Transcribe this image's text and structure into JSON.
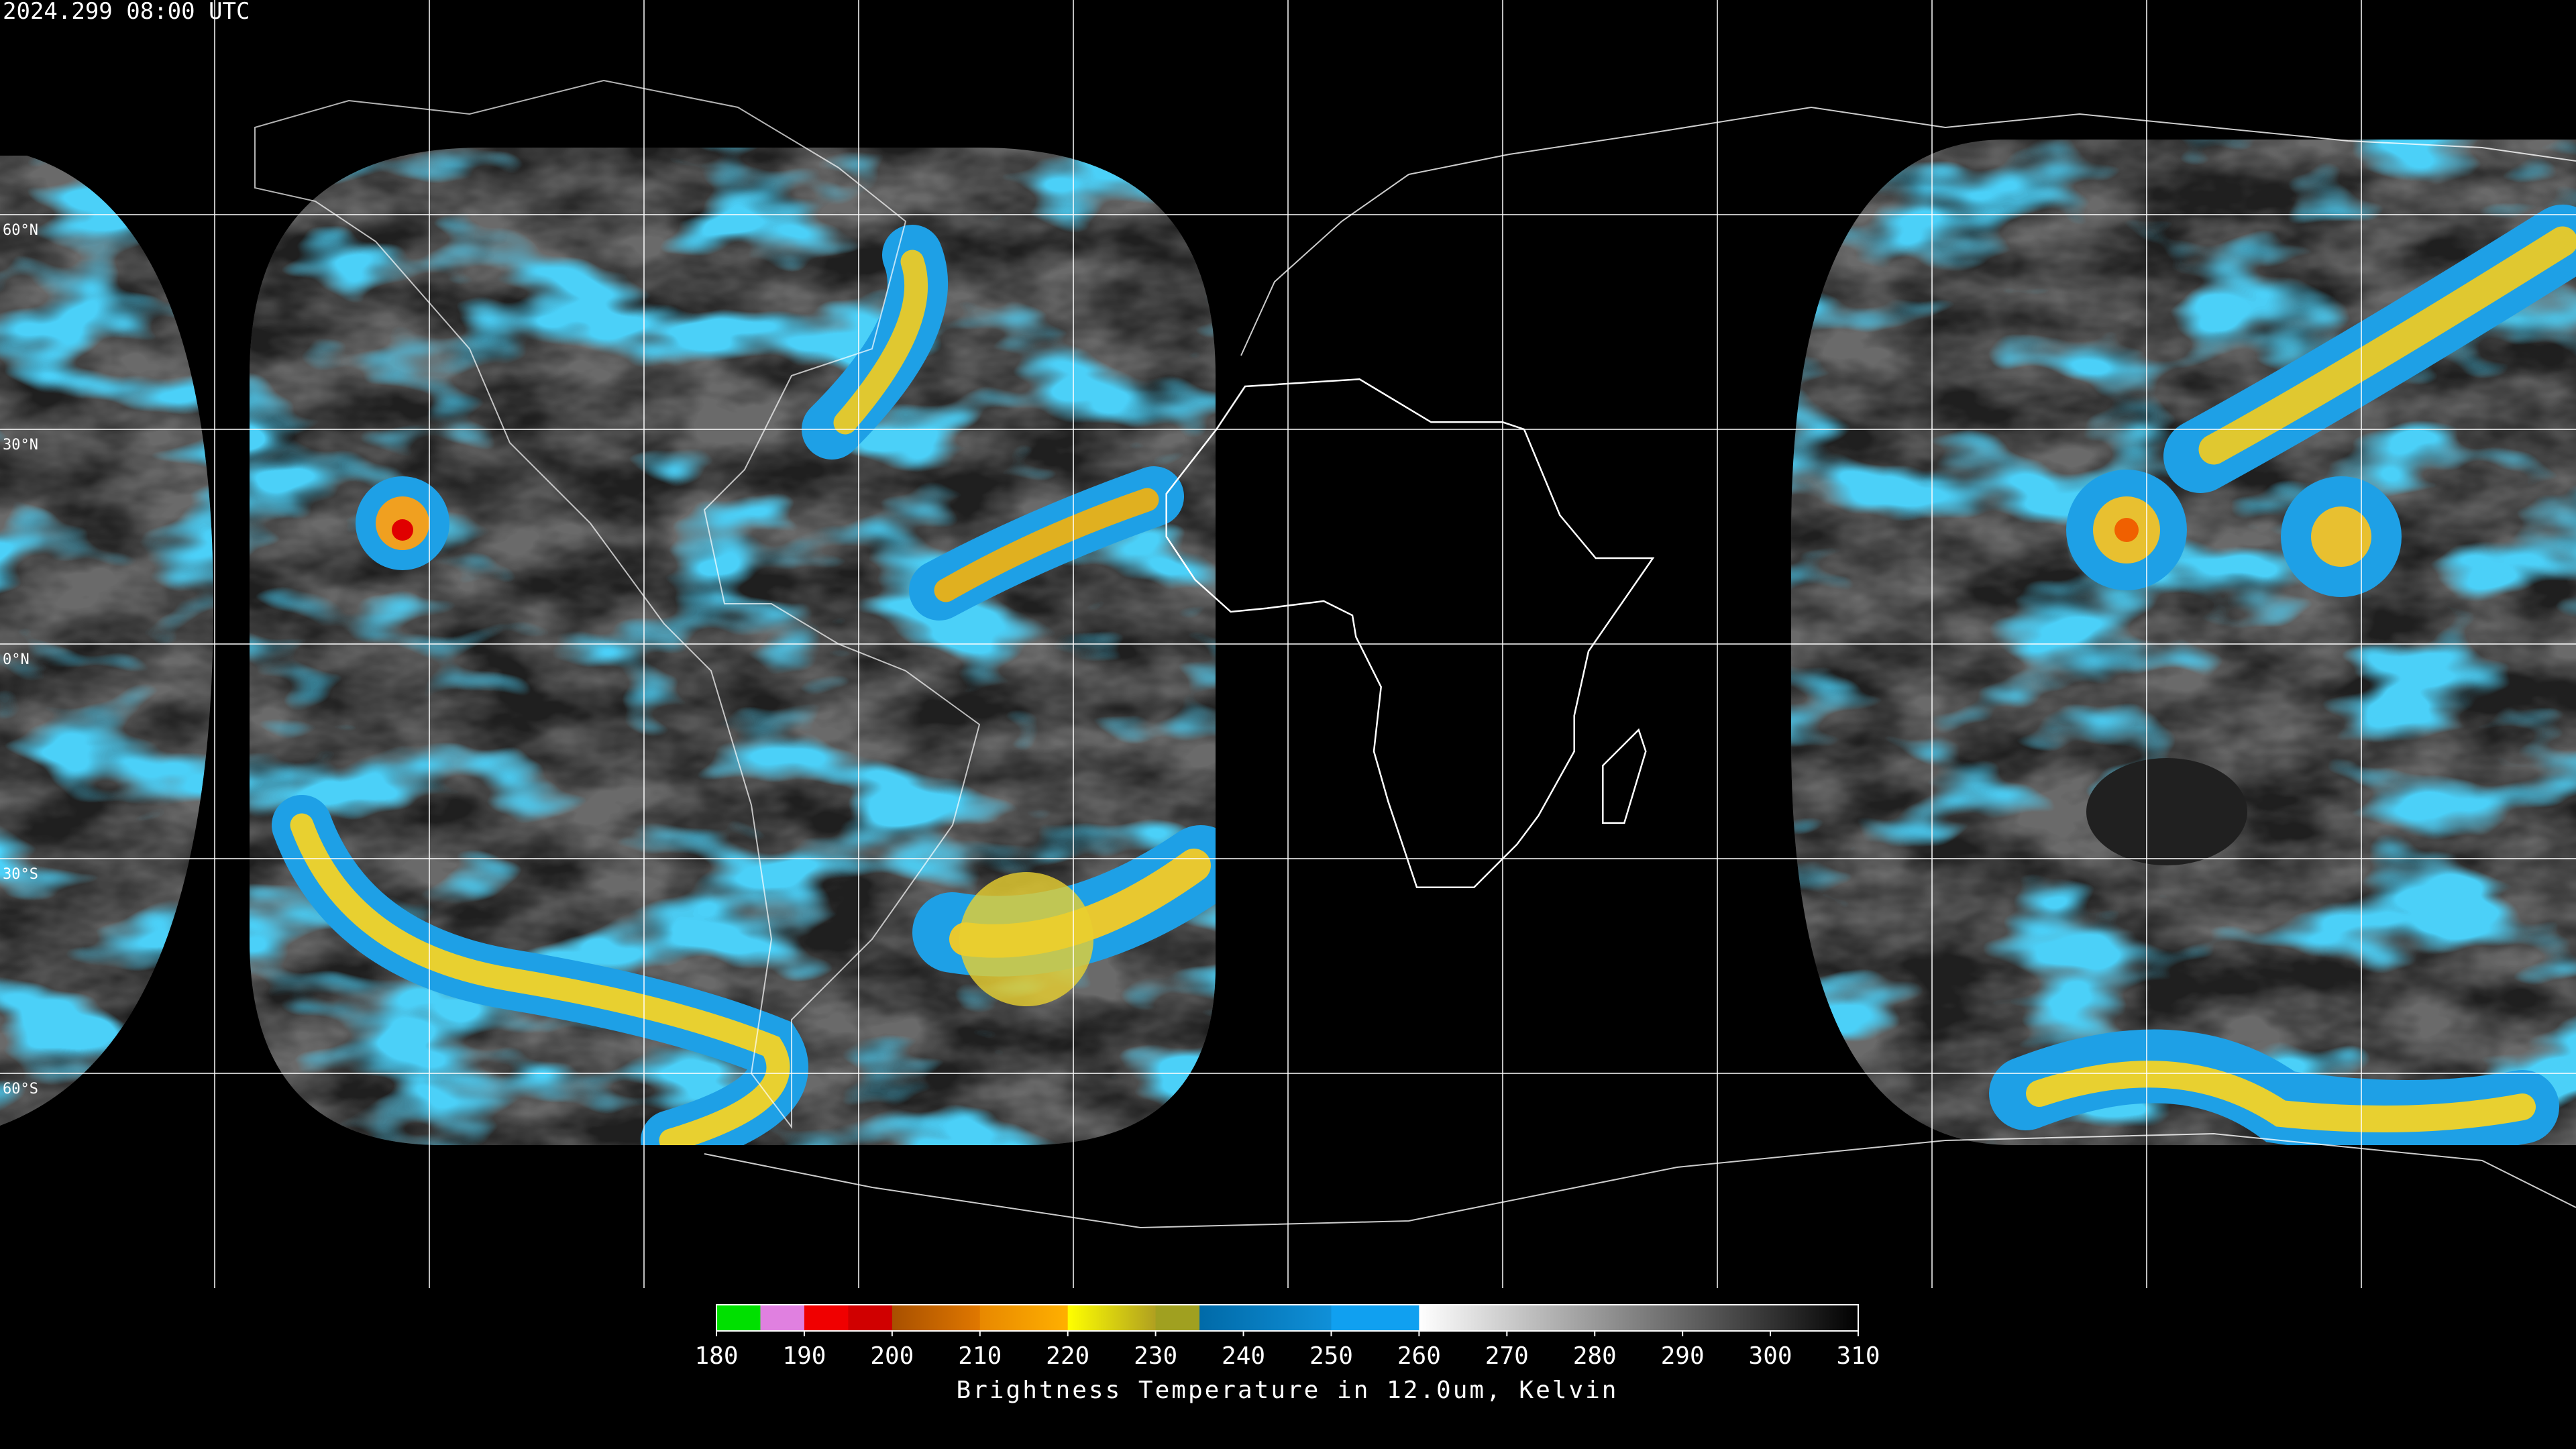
{
  "timestamp": "2024.299 08:00 UTC",
  "latitude_labels": [
    {
      "lat": 60,
      "label": "60°N"
    },
    {
      "lat": 30,
      "label": "30°N"
    },
    {
      "lat": 0,
      "label": "0°N"
    },
    {
      "lat": -30,
      "label": "30°S"
    },
    {
      "lat": -60,
      "label": "60°S"
    }
  ],
  "longitude_lines": [
    -150,
    -120,
    -90,
    -60,
    -30,
    0,
    30,
    60,
    90,
    120,
    150
  ],
  "colorbar": {
    "min": 180,
    "max": 310,
    "ticks": [
      180,
      190,
      200,
      210,
      220,
      230,
      240,
      250,
      260,
      270,
      280,
      290,
      300,
      310
    ],
    "label": "Brightness Temperature in 12.0um, Kelvin",
    "segments": [
      {
        "from": 180,
        "to": 185,
        "color_start": "#00e000",
        "color_end": "#00e000"
      },
      {
        "from": 185,
        "to": 190,
        "color_start": "#e080e0",
        "color_end": "#e080e0"
      },
      {
        "from": 190,
        "to": 195,
        "color_start": "#f00000",
        "color_end": "#f00000"
      },
      {
        "from": 195,
        "to": 200,
        "color_start": "#d00000",
        "color_end": "#d00000"
      },
      {
        "from": 200,
        "to": 210,
        "color_start": "#a85000",
        "color_end": "#e07800"
      },
      {
        "from": 210,
        "to": 220,
        "color_start": "#e88800",
        "color_end": "#ffb000"
      },
      {
        "from": 220,
        "to": 230,
        "color_start": "#ffff00",
        "color_end": "#b0a020"
      },
      {
        "from": 230,
        "to": 235,
        "color_start": "#a0a020",
        "color_end": "#a0a020"
      },
      {
        "from": 235,
        "to": 250,
        "color_start": "#006aa8",
        "color_end": "#1090d8"
      },
      {
        "from": 250,
        "to": 260,
        "color_start": "#10a0f0",
        "color_end": "#10a0f0"
      },
      {
        "from": 260,
        "to": 310,
        "color_start": "#ffffff",
        "color_end": "#000000"
      }
    ]
  }
}
